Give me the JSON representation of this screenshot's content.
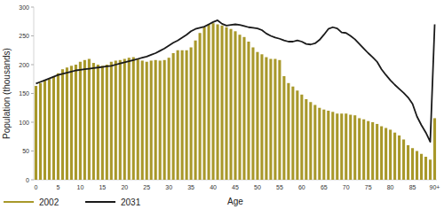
{
  "chart_data": {
    "type": "bar",
    "x_label": "Age",
    "y_label": "Population (thousands)",
    "categories": [
      "0",
      null,
      null,
      null,
      null,
      "5",
      null,
      null,
      null,
      null,
      "10",
      null,
      null,
      null,
      null,
      "15",
      null,
      null,
      null,
      null,
      "20",
      null,
      null,
      null,
      null,
      "25",
      null,
      null,
      null,
      null,
      "30",
      null,
      null,
      null,
      null,
      "35",
      null,
      null,
      null,
      null,
      "40",
      null,
      null,
      null,
      null,
      "45",
      null,
      null,
      null,
      null,
      "50",
      null,
      null,
      null,
      null,
      "55",
      null,
      null,
      null,
      null,
      "60",
      null,
      null,
      null,
      null,
      "65",
      null,
      null,
      null,
      null,
      "70",
      null,
      null,
      null,
      null,
      "75",
      null,
      null,
      null,
      null,
      "80",
      null,
      null,
      null,
      null,
      "85",
      null,
      null,
      null,
      null,
      "90+"
    ],
    "series": [
      {
        "name": "2002",
        "type": "bar",
        "color": "#a8982a",
        "values": [
          163,
          168,
          172,
          175,
          180,
          185,
          192,
          195,
          198,
          200,
          205,
          208,
          210,
          203,
          200,
          198,
          200,
          205,
          207,
          208,
          210,
          212,
          213,
          210,
          207,
          205,
          207,
          208,
          207,
          208,
          212,
          220,
          225,
          225,
          225,
          230,
          242,
          255,
          265,
          270,
          272,
          270,
          268,
          265,
          262,
          258,
          252,
          248,
          240,
          230,
          222,
          218,
          213,
          210,
          210,
          208,
          180,
          168,
          162,
          155,
          148,
          140,
          135,
          130,
          125,
          122,
          120,
          118,
          115,
          115,
          115,
          113,
          112,
          107,
          105,
          102,
          100,
          97,
          93,
          90,
          87,
          82,
          77,
          70,
          60,
          55,
          50,
          45,
          40,
          35,
          107
        ]
      },
      {
        "name": "2031",
        "type": "line",
        "color": "#1a1a1a",
        "values": [
          167,
          170,
          173,
          176,
          179,
          182,
          184,
          186,
          188,
          190,
          191,
          192,
          193,
          194,
          195,
          196,
          197,
          198,
          200,
          202,
          204,
          206,
          208,
          210,
          212,
          214,
          217,
          220,
          224,
          228,
          233,
          238,
          242,
          247,
          252,
          258,
          262,
          264,
          266,
          270,
          274,
          277,
          271,
          268,
          269,
          270,
          269,
          267,
          265,
          264,
          263,
          260,
          254,
          250,
          247,
          245,
          242,
          240,
          240,
          242,
          240,
          236,
          235,
          237,
          243,
          252,
          262,
          265,
          263,
          256,
          255,
          250,
          244,
          236,
          228,
          220,
          213,
          205,
          192,
          182,
          173,
          165,
          158,
          151,
          143,
          132,
          110,
          95,
          82,
          66,
          270
        ]
      }
    ],
    "ylim": [
      0,
      300
    ],
    "yticks": [
      0,
      50,
      100,
      150,
      200,
      250,
      300
    ],
    "grid": false,
    "legend": "bottom left"
  }
}
